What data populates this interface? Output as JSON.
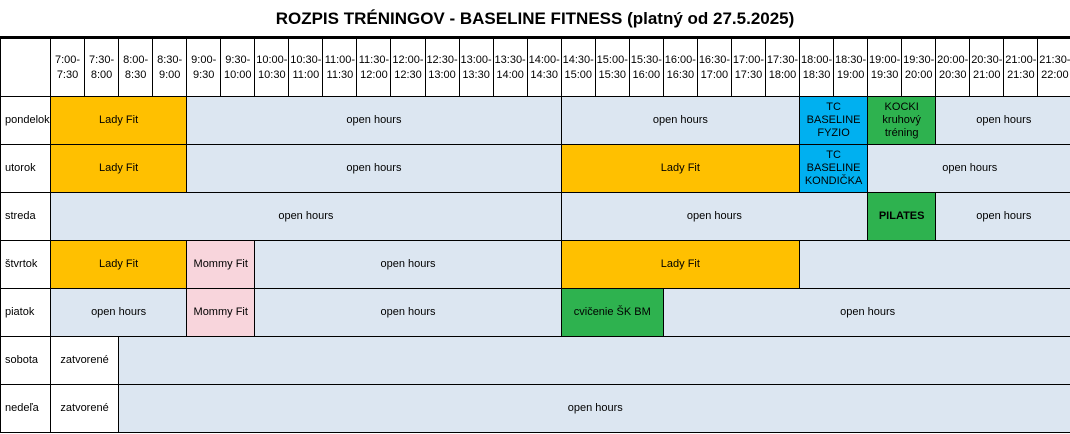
{
  "title": "ROZPIS TRÉNINGOV - BASELINE FITNESS (platný od 27.5.2025)",
  "time_slots": [
    [
      "7:00-",
      "7:30"
    ],
    [
      "7:30-",
      "8:00"
    ],
    [
      "8:00-",
      "8:30"
    ],
    [
      "8:30-",
      "9:00"
    ],
    [
      "9:00-",
      "9:30"
    ],
    [
      "9:30-",
      "10:00"
    ],
    [
      "10:00-",
      "10:30"
    ],
    [
      "10:30-",
      "11:00"
    ],
    [
      "11:00-",
      "11:30"
    ],
    [
      "11:30-",
      "12:00"
    ],
    [
      "12:00-",
      "12:30"
    ],
    [
      "12:30-",
      "13:00"
    ],
    [
      "13:00-",
      "13:30"
    ],
    [
      "13:30-",
      "14:00"
    ],
    [
      "14:00-",
      "14:30"
    ],
    [
      "14:30-",
      "15:00"
    ],
    [
      "15:00-",
      "15:30"
    ],
    [
      "15:30-",
      "16:00"
    ],
    [
      "16:00-",
      "16:30"
    ],
    [
      "16:30-",
      "17:00"
    ],
    [
      "17:00-",
      "17:30"
    ],
    [
      "17:30-",
      "18:00"
    ],
    [
      "18:00-",
      "18:30"
    ],
    [
      "18:30-",
      "19:00"
    ],
    [
      "19:00-",
      "19:30"
    ],
    [
      "19:30-",
      "20:00"
    ],
    [
      "20:00-",
      "20:30"
    ],
    [
      "20:30-",
      "21:00"
    ],
    [
      "21:00-",
      "21:30"
    ],
    [
      "21:30-",
      "22:00"
    ]
  ],
  "colors": {
    "open": "#dce6f1",
    "lady": "#ffc000",
    "mommy": "#f8d5dc",
    "tc": "#00b0f0",
    "green": "#2eb24f",
    "white": "#ffffff"
  },
  "days": [
    {
      "name": "pondelok",
      "blocks": [
        {
          "label": "Lady Fit",
          "span": 4,
          "style": "lady"
        },
        {
          "label": "open hours",
          "span": 11,
          "style": "open"
        },
        {
          "label": "open hours",
          "span": 7,
          "style": "open"
        },
        {
          "label": "TC BASELINE FYZIO",
          "span": 2,
          "style": "tc"
        },
        {
          "label": "KOCKI kruhový tréning",
          "span": 2,
          "style": "green"
        },
        {
          "label": "open hours",
          "span": 4,
          "style": "open"
        }
      ]
    },
    {
      "name": "utorok",
      "blocks": [
        {
          "label": "Lady Fit",
          "span": 4,
          "style": "lady"
        },
        {
          "label": "open hours",
          "span": 11,
          "style": "open"
        },
        {
          "label": "Lady Fit",
          "span": 7,
          "style": "lady"
        },
        {
          "label": "TC BASELINE KONDIČKA",
          "span": 2,
          "style": "tc"
        },
        {
          "label": "open hours",
          "span": 6,
          "style": "open"
        }
      ]
    },
    {
      "name": "streda",
      "blocks": [
        {
          "label": "open hours",
          "span": 15,
          "style": "open"
        },
        {
          "label": "open hours",
          "span": 9,
          "style": "open"
        },
        {
          "label": "PILATES",
          "span": 2,
          "style": "green"
        },
        {
          "label": "open hours",
          "span": 4,
          "style": "open"
        }
      ]
    },
    {
      "name": "štvrtok",
      "blocks": [
        {
          "label": "Lady Fit",
          "span": 4,
          "style": "lady"
        },
        {
          "label": "Mommy Fit",
          "span": 2,
          "style": "mommy"
        },
        {
          "label": "open hours",
          "span": 9,
          "style": "open"
        },
        {
          "label": "Lady Fit",
          "span": 7,
          "style": "lady"
        },
        {
          "label": "",
          "span": 8,
          "style": "open"
        }
      ]
    },
    {
      "name": "piatok",
      "blocks": [
        {
          "label": "open hours",
          "span": 4,
          "style": "open"
        },
        {
          "label": "Mommy Fit",
          "span": 2,
          "style": "mommy"
        },
        {
          "label": "open hours",
          "span": 9,
          "style": "open"
        },
        {
          "label": "cvičenie ŠK BM",
          "span": 3,
          "style": "green"
        },
        {
          "label": "open hours",
          "span": 12,
          "style": "open"
        }
      ]
    },
    {
      "name": "sobota",
      "blocks": [
        {
          "label": "zatvorené",
          "span": 2,
          "style": "white"
        },
        {
          "label": "",
          "span": 28,
          "style": "open"
        }
      ]
    },
    {
      "name": "nedeľa",
      "blocks": [
        {
          "label": "zatvorené",
          "span": 2,
          "style": "white"
        },
        {
          "label": "open hours",
          "span": 28,
          "style": "open"
        }
      ]
    }
  ]
}
